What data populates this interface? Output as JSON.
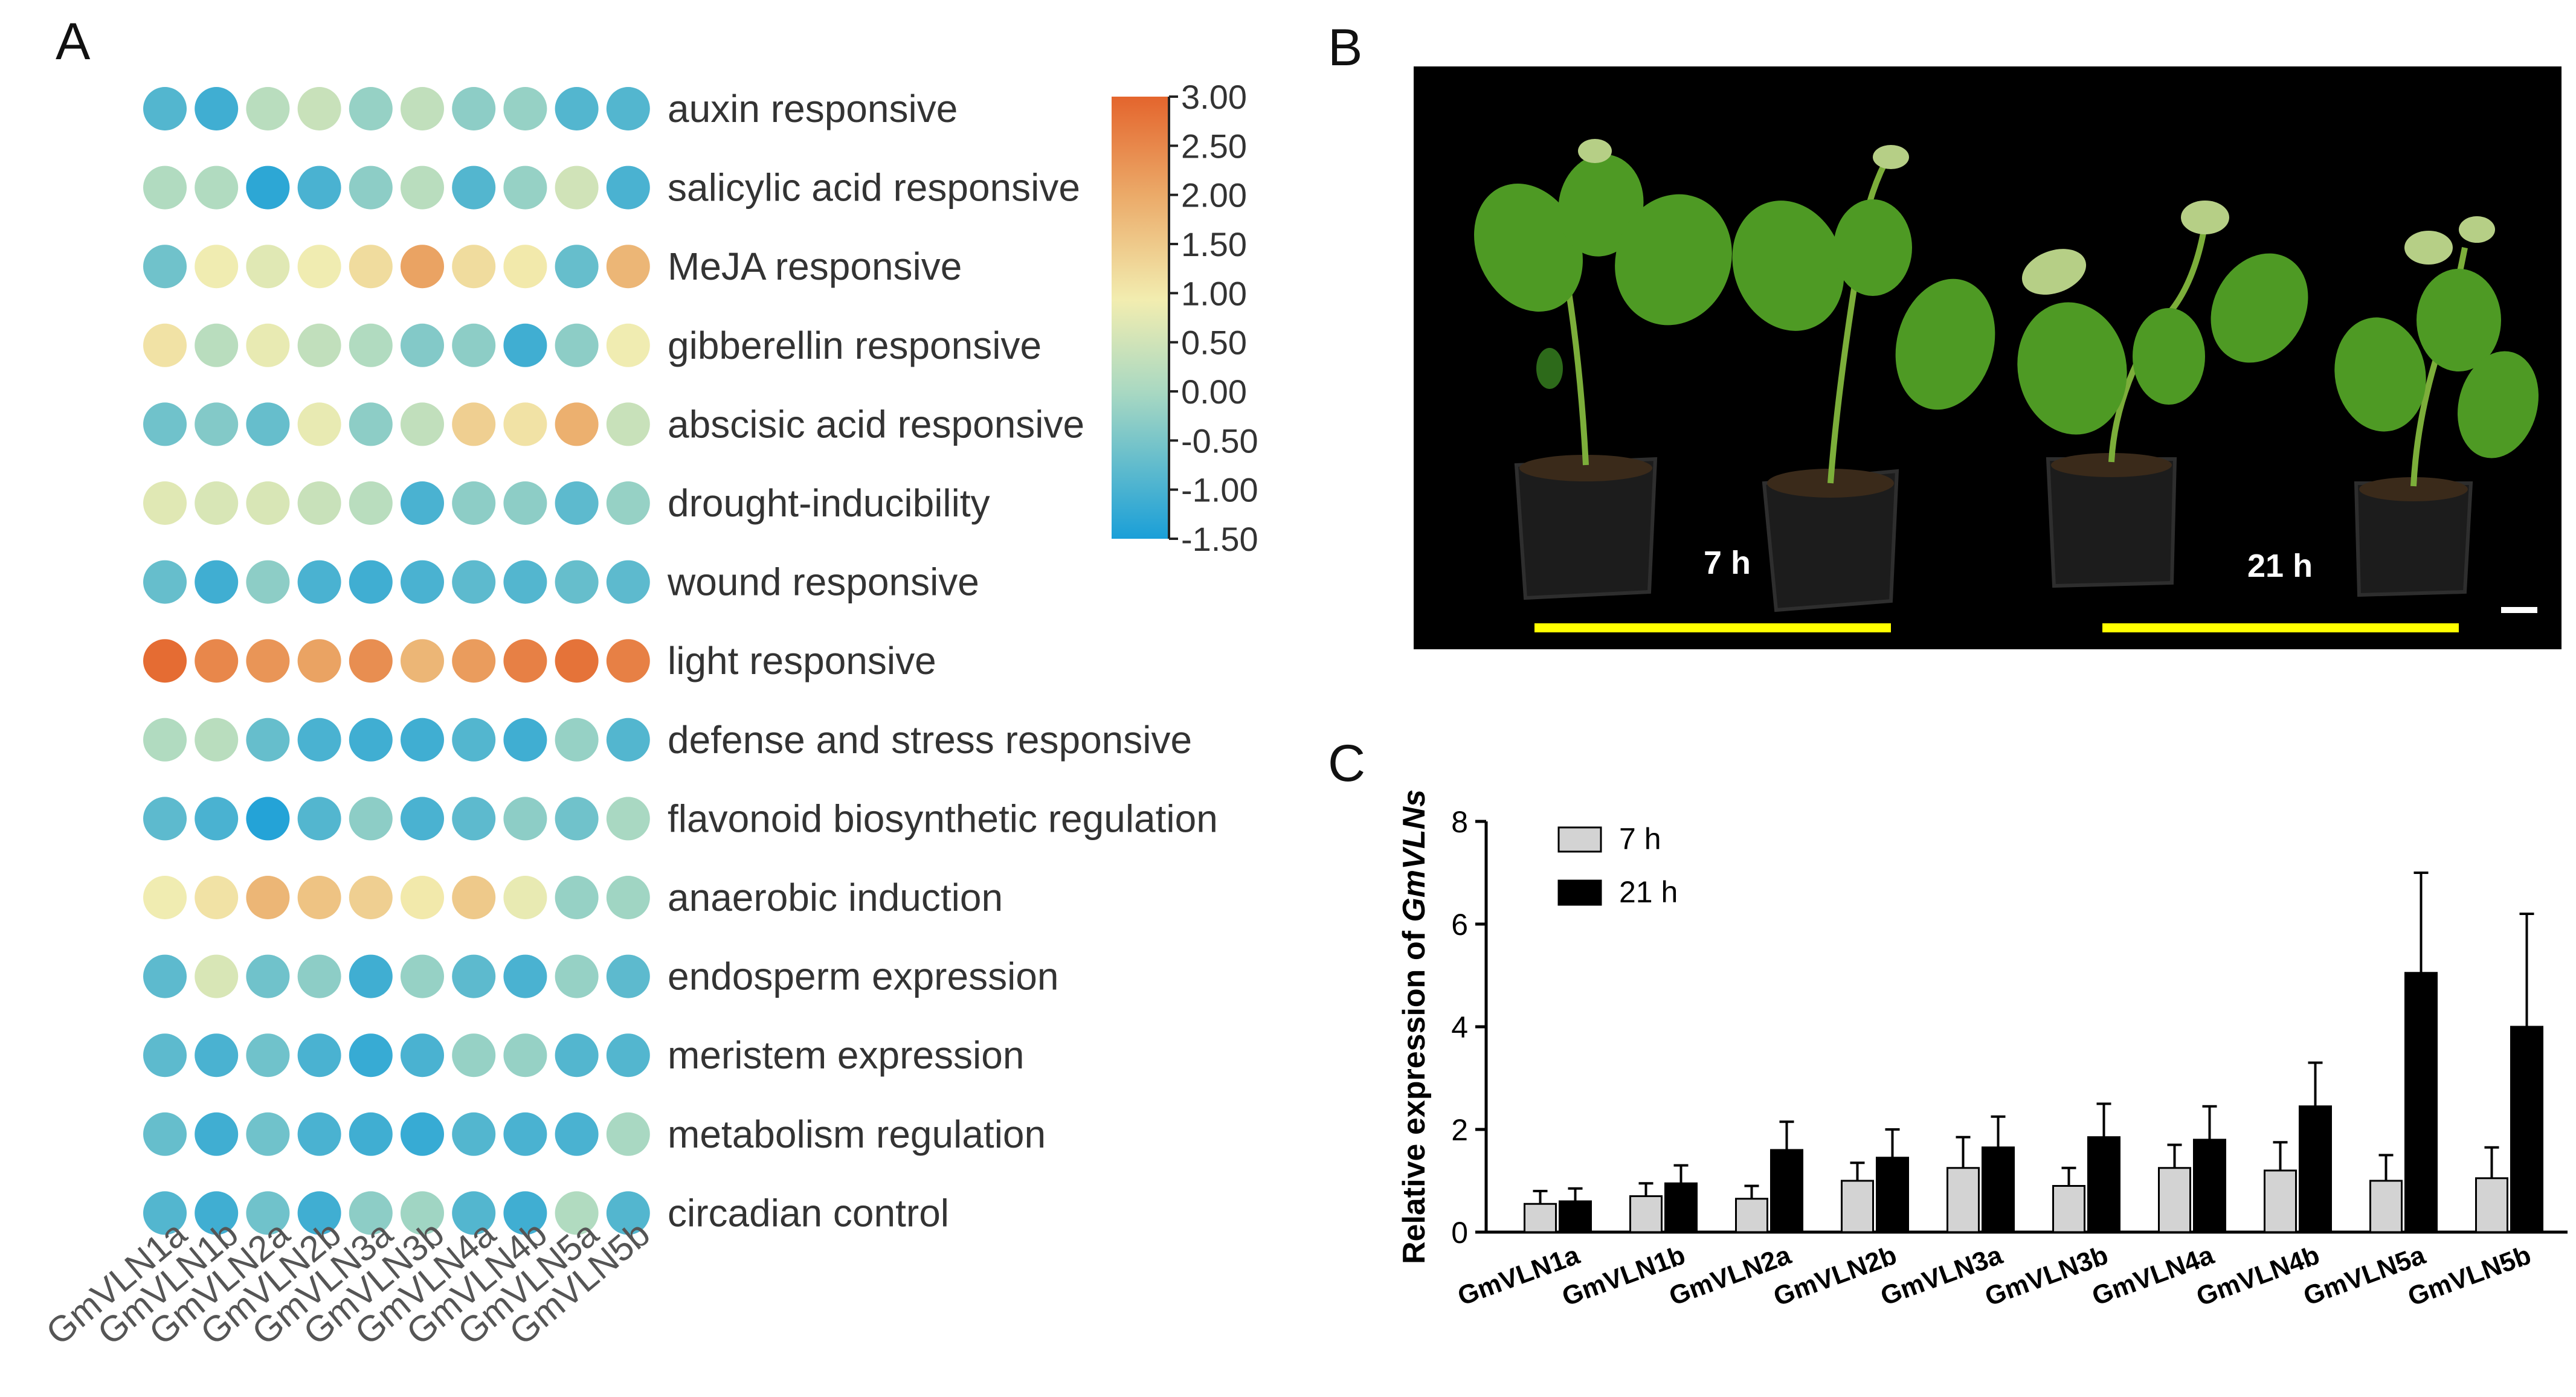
{
  "panels": {
    "a": "A",
    "b": "B",
    "c": "C"
  },
  "chart_data": [
    {
      "type": "heatmap",
      "title": "",
      "columns": [
        "GmVLN1a",
        "GmVLN1b",
        "GmVLN2a",
        "GmVLN2b",
        "GmVLN3a",
        "GmVLN3b",
        "GmVLN4a",
        "GmVLN4b",
        "GmVLN5a",
        "GmVLN5b"
      ],
      "rows": [
        "auxin responsive",
        "salicylic acid responsive",
        "MeJA responsive",
        "gibberellin responsive",
        "abscisic acid responsive",
        "drought-inducibility",
        "wound responsive",
        "light responsive",
        "defense and stress responsive",
        "flavonoid biosynthetic regulation",
        "anaerobic induction",
        "endosperm expression",
        "meristem expression",
        "metabolism regulation",
        "circadian control"
      ],
      "values": [
        [
          -0.9,
          -1.1,
          0.2,
          0.4,
          -0.2,
          0.3,
          -0.3,
          -0.2,
          -0.9,
          -0.9
        ],
        [
          0.1,
          0.1,
          -1.3,
          -1.0,
          -0.3,
          0.2,
          -0.9,
          -0.2,
          0.5,
          -1.0
        ],
        [
          -0.6,
          0.9,
          0.7,
          0.9,
          1.2,
          2.1,
          1.2,
          1.0,
          -0.7,
          1.8
        ],
        [
          1.1,
          0.2,
          0.8,
          0.3,
          0.1,
          -0.4,
          -0.3,
          -1.1,
          -0.3,
          0.9
        ],
        [
          -0.6,
          -0.4,
          -0.7,
          0.8,
          -0.3,
          0.3,
          1.4,
          1.1,
          1.9,
          0.4
        ],
        [
          0.7,
          0.6,
          0.6,
          0.4,
          0.2,
          -1.0,
          -0.3,
          -0.3,
          -0.8,
          -0.2
        ],
        [
          -0.7,
          -1.1,
          -0.3,
          -1.0,
          -1.1,
          -1.0,
          -0.8,
          -0.9,
          -0.7,
          -0.8
        ],
        [
          2.9,
          2.5,
          2.3,
          2.1,
          2.4,
          1.8,
          2.2,
          2.6,
          2.8,
          2.6
        ],
        [
          0.1,
          0.2,
          -0.7,
          -1.0,
          -1.1,
          -1.1,
          -0.9,
          -1.1,
          -0.2,
          -0.9
        ],
        [
          -0.8,
          -1.0,
          -1.4,
          -0.9,
          -0.3,
          -1.0,
          -0.8,
          -0.3,
          -0.6,
          0.0
        ],
        [
          0.9,
          1.1,
          1.8,
          1.6,
          1.4,
          1.0,
          1.5,
          0.8,
          -0.2,
          -0.1
        ],
        [
          -0.8,
          0.6,
          -0.6,
          -0.3,
          -1.1,
          -0.2,
          -0.8,
          -1.0,
          -0.2,
          -0.8
        ],
        [
          -0.8,
          -1.0,
          -0.6,
          -1.0,
          -1.2,
          -1.0,
          -0.2,
          -0.2,
          -0.9,
          -0.9
        ],
        [
          -0.7,
          -1.1,
          -0.6,
          -1.0,
          -1.1,
          -1.2,
          -0.9,
          -1.0,
          -1.0,
          0.0
        ],
        [
          -0.9,
          -1.1,
          -0.6,
          -1.1,
          -0.3,
          -0.1,
          -0.9,
          -1.1,
          0.1,
          -0.9
        ]
      ],
      "colorbar": {
        "ticks": [
          "3.00",
          "2.50",
          "2.00",
          "1.50",
          "1.00",
          "0.50",
          "0.00",
          "-0.50",
          "-1.00",
          "-1.50"
        ],
        "min": -1.5,
        "max": 3.0
      }
    },
    {
      "type": "bar",
      "title": "",
      "ylabel": "Relative expression of GmVLNs",
      "ylabel_plain": "Relative expression of ",
      "ylabel_italic": "GmVLNs",
      "xlabel": "",
      "ylim": [
        0,
        8
      ],
      "yticks": [
        "0",
        "2",
        "4",
        "6",
        "8"
      ],
      "categories": [
        "GmVLN1a",
        "GmVLN1b",
        "GmVLN2a",
        "GmVLN2b",
        "GmVLN3a",
        "GmVLN3b",
        "GmVLN4a",
        "GmVLN4b",
        "GmVLN5a",
        "GmVLN5b"
      ],
      "series": [
        {
          "name": "7 h",
          "color": "#d3d3d3",
          "values": [
            0.55,
            0.7,
            0.65,
            1.0,
            1.25,
            0.9,
            1.25,
            1.2,
            1.0,
            1.05
          ],
          "errors": [
            0.25,
            0.25,
            0.25,
            0.35,
            0.6,
            0.35,
            0.45,
            0.55,
            0.5,
            0.6
          ]
        },
        {
          "name": "21 h",
          "color": "#000000",
          "values": [
            0.6,
            0.95,
            1.6,
            1.45,
            1.65,
            1.85,
            1.8,
            2.45,
            5.05,
            4.0
          ],
          "errors": [
            0.25,
            0.35,
            0.55,
            0.55,
            0.6,
            0.65,
            0.65,
            0.85,
            1.95,
            2.2
          ]
        }
      ]
    }
  ],
  "photo": {
    "labels": [
      "7 h",
      "21 h"
    ]
  }
}
